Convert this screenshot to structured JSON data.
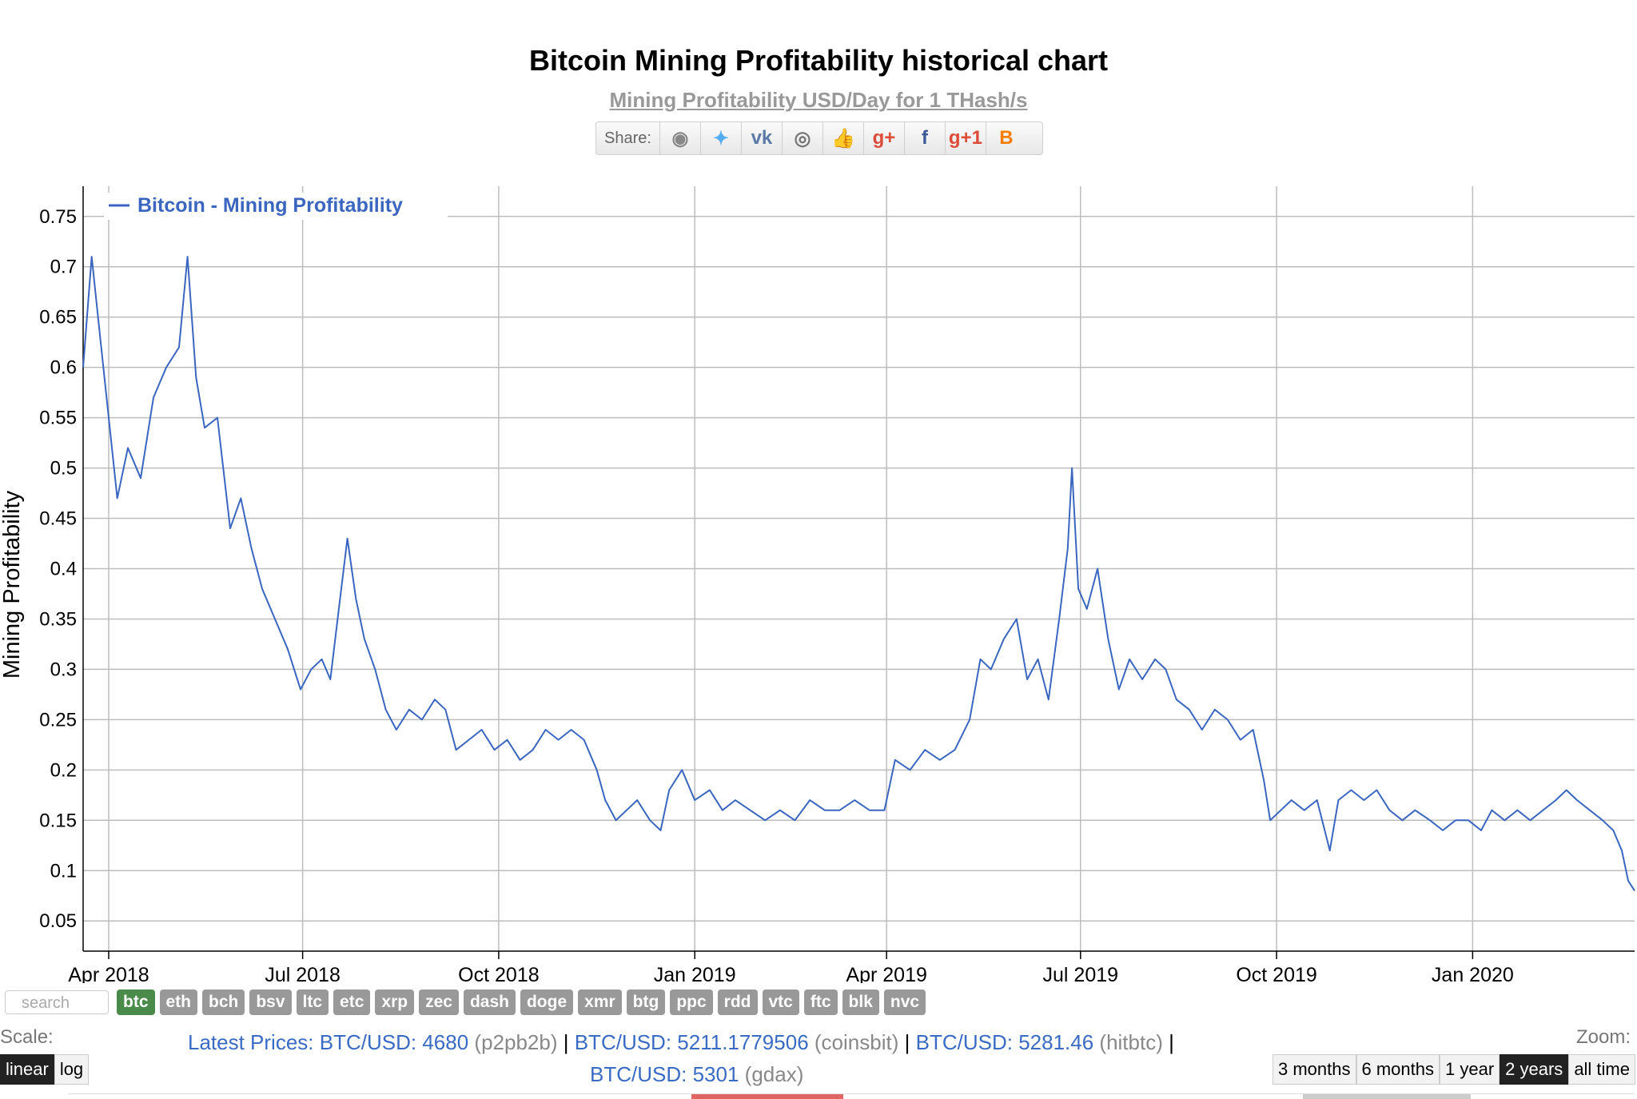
{
  "page": {
    "title": "Bitcoin Mining Profitability historical chart",
    "subtitle": "Mining Profitability USD/Day for 1 THash/s"
  },
  "share": {
    "label": "Share:",
    "buttons": [
      {
        "name": "reddit-icon",
        "glyph": "◉",
        "color": "#888888"
      },
      {
        "name": "twitter-icon",
        "glyph": "✦",
        "color": "#55acee"
      },
      {
        "name": "vk-icon",
        "glyph": "vk",
        "color": "#5b7aa8"
      },
      {
        "name": "weibo-icon",
        "glyph": "◎",
        "color": "#777777"
      },
      {
        "name": "like-icon",
        "glyph": "👍",
        "color": "#5b7aa8"
      },
      {
        "name": "google-plus-icon",
        "glyph": "g+",
        "color": "#dd4b39"
      },
      {
        "name": "facebook-icon",
        "glyph": "f",
        "color": "#3b5998"
      },
      {
        "name": "google-plus-one-icon",
        "glyph": "g+1",
        "color": "#dd4b39"
      },
      {
        "name": "blogger-icon",
        "glyph": "B",
        "color": "#f57d00"
      }
    ]
  },
  "chart_data": {
    "type": "line",
    "title": "Bitcoin Mining Profitability historical chart",
    "subtitle": "Mining Profitability USD/Day for 1 THash/s",
    "ylabel": "Mining Profitability",
    "xlabel": "",
    "ylim": [
      0.02,
      0.78
    ],
    "yticks": [
      0.05,
      0.1,
      0.15,
      0.2,
      0.25,
      0.3,
      0.35,
      0.4,
      0.45,
      0.5,
      0.55,
      0.6,
      0.65,
      0.7,
      0.75
    ],
    "xlim": [
      "2018-03-20",
      "2020-03-17"
    ],
    "xticks": [
      {
        "date": "2018-04-01",
        "label": "Apr 2018"
      },
      {
        "date": "2018-07-01",
        "label": "Jul 2018"
      },
      {
        "date": "2018-10-01",
        "label": "Oct 2018"
      },
      {
        "date": "2019-01-01",
        "label": "Jan 2019"
      },
      {
        "date": "2019-04-01",
        "label": "Apr 2019"
      },
      {
        "date": "2019-07-01",
        "label": "Jul 2019"
      },
      {
        "date": "2019-10-01",
        "label": "Oct 2019"
      },
      {
        "date": "2020-01-01",
        "label": "Jan 2020"
      }
    ],
    "grid": true,
    "legend_position": "top-left",
    "series": [
      {
        "name": "Bitcoin - Mining Profitability",
        "color": "#3a66c0",
        "points": [
          [
            "2018-03-20",
            0.6
          ],
          [
            "2018-03-24",
            0.71
          ],
          [
            "2018-03-28",
            0.63
          ],
          [
            "2018-04-01",
            0.55
          ],
          [
            "2018-04-05",
            0.47
          ],
          [
            "2018-04-10",
            0.52
          ],
          [
            "2018-04-16",
            0.49
          ],
          [
            "2018-04-22",
            0.57
          ],
          [
            "2018-04-28",
            0.6
          ],
          [
            "2018-05-04",
            0.62
          ],
          [
            "2018-05-08",
            0.71
          ],
          [
            "2018-05-12",
            0.59
          ],
          [
            "2018-05-16",
            0.54
          ],
          [
            "2018-05-22",
            0.55
          ],
          [
            "2018-05-28",
            0.44
          ],
          [
            "2018-06-02",
            0.47
          ],
          [
            "2018-06-07",
            0.42
          ],
          [
            "2018-06-12",
            0.38
          ],
          [
            "2018-06-18",
            0.35
          ],
          [
            "2018-06-24",
            0.32
          ],
          [
            "2018-06-30",
            0.28
          ],
          [
            "2018-07-05",
            0.3
          ],
          [
            "2018-07-10",
            0.31
          ],
          [
            "2018-07-14",
            0.29
          ],
          [
            "2018-07-18",
            0.36
          ],
          [
            "2018-07-22",
            0.43
          ],
          [
            "2018-07-26",
            0.37
          ],
          [
            "2018-07-30",
            0.33
          ],
          [
            "2018-08-04",
            0.3
          ],
          [
            "2018-08-09",
            0.26
          ],
          [
            "2018-08-14",
            0.24
          ],
          [
            "2018-08-20",
            0.26
          ],
          [
            "2018-08-26",
            0.25
          ],
          [
            "2018-09-01",
            0.27
          ],
          [
            "2018-09-06",
            0.26
          ],
          [
            "2018-09-11",
            0.22
          ],
          [
            "2018-09-17",
            0.23
          ],
          [
            "2018-09-23",
            0.24
          ],
          [
            "2018-09-29",
            0.22
          ],
          [
            "2018-10-05",
            0.23
          ],
          [
            "2018-10-11",
            0.21
          ],
          [
            "2018-10-17",
            0.22
          ],
          [
            "2018-10-23",
            0.24
          ],
          [
            "2018-10-29",
            0.23
          ],
          [
            "2018-11-04",
            0.24
          ],
          [
            "2018-11-10",
            0.23
          ],
          [
            "2018-11-16",
            0.2
          ],
          [
            "2018-11-20",
            0.17
          ],
          [
            "2018-11-25",
            0.15
          ],
          [
            "2018-11-30",
            0.16
          ],
          [
            "2018-12-05",
            0.17
          ],
          [
            "2018-12-11",
            0.15
          ],
          [
            "2018-12-16",
            0.14
          ],
          [
            "2018-12-20",
            0.18
          ],
          [
            "2018-12-26",
            0.2
          ],
          [
            "2019-01-01",
            0.17
          ],
          [
            "2019-01-08",
            0.18
          ],
          [
            "2019-01-14",
            0.16
          ],
          [
            "2019-01-20",
            0.17
          ],
          [
            "2019-01-27",
            0.16
          ],
          [
            "2019-02-03",
            0.15
          ],
          [
            "2019-02-10",
            0.16
          ],
          [
            "2019-02-17",
            0.15
          ],
          [
            "2019-02-24",
            0.17
          ],
          [
            "2019-03-03",
            0.16
          ],
          [
            "2019-03-10",
            0.16
          ],
          [
            "2019-03-17",
            0.17
          ],
          [
            "2019-03-24",
            0.16
          ],
          [
            "2019-03-31",
            0.16
          ],
          [
            "2019-04-05",
            0.21
          ],
          [
            "2019-04-12",
            0.2
          ],
          [
            "2019-04-19",
            0.22
          ],
          [
            "2019-04-26",
            0.21
          ],
          [
            "2019-05-03",
            0.22
          ],
          [
            "2019-05-10",
            0.25
          ],
          [
            "2019-05-15",
            0.31
          ],
          [
            "2019-05-20",
            0.3
          ],
          [
            "2019-05-26",
            0.33
          ],
          [
            "2019-06-01",
            0.35
          ],
          [
            "2019-06-06",
            0.29
          ],
          [
            "2019-06-11",
            0.31
          ],
          [
            "2019-06-16",
            0.27
          ],
          [
            "2019-06-21",
            0.35
          ],
          [
            "2019-06-25",
            0.42
          ],
          [
            "2019-06-27",
            0.5
          ],
          [
            "2019-06-30",
            0.38
          ],
          [
            "2019-07-04",
            0.36
          ],
          [
            "2019-07-09",
            0.4
          ],
          [
            "2019-07-14",
            0.33
          ],
          [
            "2019-07-19",
            0.28
          ],
          [
            "2019-07-24",
            0.31
          ],
          [
            "2019-07-30",
            0.29
          ],
          [
            "2019-08-05",
            0.31
          ],
          [
            "2019-08-10",
            0.3
          ],
          [
            "2019-08-15",
            0.27
          ],
          [
            "2019-08-21",
            0.26
          ],
          [
            "2019-08-27",
            0.24
          ],
          [
            "2019-09-02",
            0.26
          ],
          [
            "2019-09-08",
            0.25
          ],
          [
            "2019-09-14",
            0.23
          ],
          [
            "2019-09-20",
            0.24
          ],
          [
            "2019-09-25",
            0.19
          ],
          [
            "2019-09-28",
            0.15
          ],
          [
            "2019-10-03",
            0.16
          ],
          [
            "2019-10-08",
            0.17
          ],
          [
            "2019-10-14",
            0.16
          ],
          [
            "2019-10-20",
            0.17
          ],
          [
            "2019-10-26",
            0.12
          ],
          [
            "2019-10-30",
            0.17
          ],
          [
            "2019-11-05",
            0.18
          ],
          [
            "2019-11-11",
            0.17
          ],
          [
            "2019-11-17",
            0.18
          ],
          [
            "2019-11-23",
            0.16
          ],
          [
            "2019-11-29",
            0.15
          ],
          [
            "2019-12-05",
            0.16
          ],
          [
            "2019-12-12",
            0.15
          ],
          [
            "2019-12-18",
            0.14
          ],
          [
            "2019-12-24",
            0.15
          ],
          [
            "2019-12-30",
            0.15
          ],
          [
            "2020-01-05",
            0.14
          ],
          [
            "2020-01-10",
            0.16
          ],
          [
            "2020-01-16",
            0.15
          ],
          [
            "2020-01-22",
            0.16
          ],
          [
            "2020-01-28",
            0.15
          ],
          [
            "2020-02-03",
            0.16
          ],
          [
            "2020-02-09",
            0.17
          ],
          [
            "2020-02-14",
            0.18
          ],
          [
            "2020-02-19",
            0.17
          ],
          [
            "2020-02-25",
            0.16
          ],
          [
            "2020-03-02",
            0.15
          ],
          [
            "2020-03-07",
            0.14
          ],
          [
            "2020-03-11",
            0.12
          ],
          [
            "2020-03-14",
            0.09
          ],
          [
            "2020-03-17",
            0.08
          ]
        ]
      }
    ]
  },
  "coins": {
    "search_placeholder": "search",
    "items": [
      "btc",
      "eth",
      "bch",
      "bsv",
      "ltc",
      "etc",
      "xrp",
      "zec",
      "dash",
      "doge",
      "xmr",
      "btg",
      "ppc",
      "rdd",
      "vtc",
      "ftc",
      "blk",
      "nvc"
    ],
    "active": "btc"
  },
  "scale": {
    "label": "Scale:",
    "options": [
      "linear",
      "log"
    ],
    "active": "linear"
  },
  "prices": {
    "label": "Latest Prices:",
    "entries": [
      {
        "pair": "BTC/USD:",
        "value": "4680",
        "source": "(p2pb2b)"
      },
      {
        "pair": "BTC/USD:",
        "value": "5211.1779506",
        "source": "(coinsbit)"
      },
      {
        "pair": "BTC/USD:",
        "value": "5281.46",
        "source": "(hitbtc)"
      },
      {
        "pair": "BTC/USD:",
        "value": "5301",
        "source": "(gdax)"
      }
    ],
    "separator": "|"
  },
  "zoom": {
    "label": "Zoom:",
    "options": [
      "3 months",
      "6 months",
      "1 year",
      "2 years",
      "all time"
    ],
    "active": "2 years"
  },
  "colors": {
    "line": "#3a66c0",
    "grid": "#bdbdbd",
    "coin_active": "#4a8a4a",
    "coin_inactive": "#999999",
    "price_link": "#3a6bc4"
  }
}
